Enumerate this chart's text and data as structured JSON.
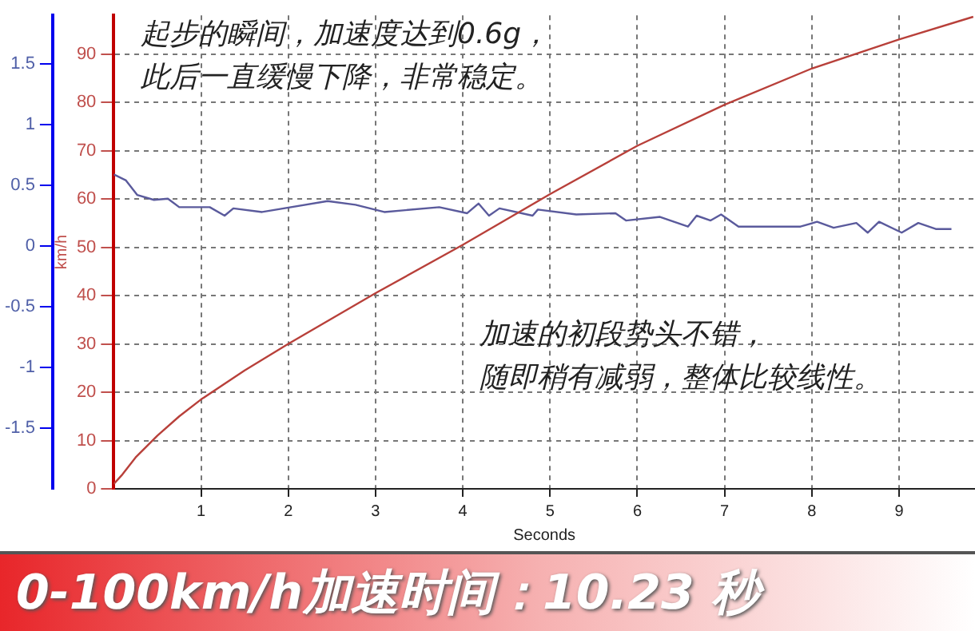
{
  "chart_data": {
    "type": "line",
    "title": "0-100km/h加速时间：10.23 秒",
    "xlabel": "Seconds",
    "ylabel": "km/h",
    "xlim": [
      0,
      9.87
    ],
    "xticks": [
      1,
      2,
      3,
      4,
      5,
      6,
      7,
      8,
      9
    ],
    "ylim": [
      0,
      98
    ],
    "yticks": [
      0,
      10,
      20,
      30,
      40,
      50,
      60,
      70,
      80,
      90
    ],
    "y2lim": [
      -2,
      1.9
    ],
    "y2ticks": [
      -1.5,
      -1,
      -0.5,
      0,
      0.5,
      1,
      1.5
    ],
    "grid": true,
    "legend": false,
    "marker": "none",
    "annotations": [
      "起步的瞬间，加速度达到0.6g，",
      "此后一直缓慢下降，非常稳定。",
      "加速的初段势头不错，",
      "随即稍有减弱，整体比较线性。"
    ],
    "series": [
      {
        "color": "#b8403a",
        "x": [
          0,
          0.1,
          0.25,
          0.5,
          0.75,
          1,
          1.5,
          2,
          3,
          4,
          5,
          6,
          7,
          8,
          9,
          9.85
        ],
        "values": [
          1,
          3,
          6.5,
          11,
          15,
          18.5,
          24.5,
          30,
          40.5,
          50.5,
          61,
          71,
          79.5,
          87,
          93,
          97.7
        ]
      },
      {
        "color": "#5a5a9c",
        "axis": "y2",
        "x": [
          0,
          0.14,
          0.27,
          0.46,
          0.62,
          0.75,
          1.1,
          1.27,
          1.37,
          1.7,
          2.45,
          2.77,
          3.1,
          3.73,
          4.05,
          4.18,
          4.3,
          4.42,
          4.8,
          4.86,
          5.3,
          5.75,
          5.87,
          6.26,
          6.58,
          6.68,
          6.84,
          6.96,
          7.16,
          7.87,
          8.06,
          8.25,
          8.51,
          8.64,
          8.77,
          9.03,
          9.22,
          9.42,
          9.6
        ],
        "values": [
          0.59,
          0.54,
          0.42,
          0.38,
          0.39,
          0.32,
          0.32,
          0.25,
          0.31,
          0.28,
          0.37,
          0.34,
          0.28,
          0.32,
          0.27,
          0.35,
          0.25,
          0.31,
          0.25,
          0.3,
          0.26,
          0.27,
          0.21,
          0.24,
          0.16,
          0.25,
          0.21,
          0.26,
          0.16,
          0.16,
          0.2,
          0.15,
          0.19,
          0.11,
          0.2,
          0.11,
          0.19,
          0.14,
          0.14
        ]
      }
    ]
  }
}
